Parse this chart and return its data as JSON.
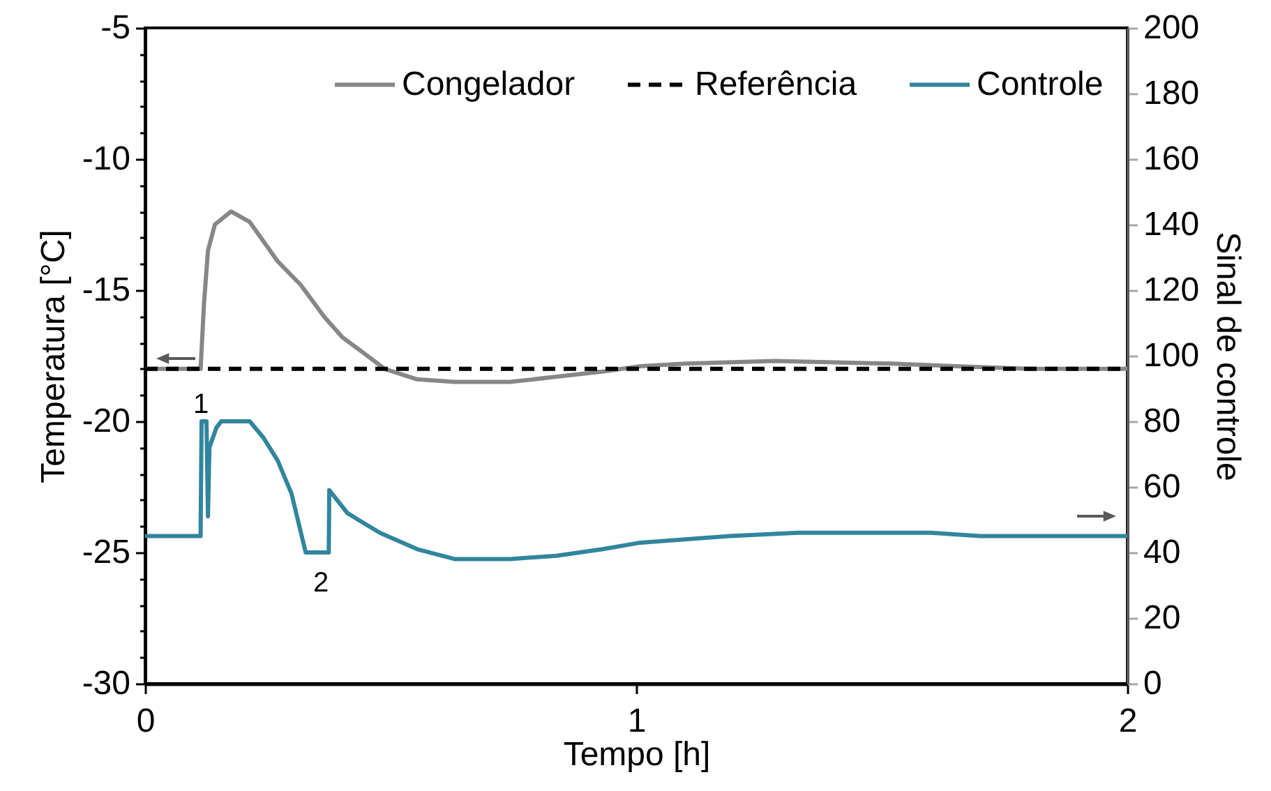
{
  "chart_data": {
    "type": "line",
    "xlabel": "Tempo [h]",
    "ylabel": "Temperatura [°C]",
    "y2label": "Sinal de controle",
    "legend": "top right",
    "xlim": [
      0,
      2
    ],
    "xticks": [
      0,
      1,
      2
    ],
    "ylim": [
      -30,
      -5
    ],
    "yticks": [
      -30,
      {
        "value": -29,
        "label": null
      },
      {
        "value": -28,
        "label": null
      },
      {
        "value": -27,
        "label": null
      },
      {
        "value": -26,
        "label": null
      },
      -25,
      {
        "value": -24,
        "label": null
      },
      {
        "value": -23,
        "label": null
      },
      {
        "value": -22,
        "label": null
      },
      {
        "value": -21,
        "label": null
      },
      -20,
      {
        "value": -19,
        "label": null
      },
      {
        "value": -18,
        "label": null
      },
      {
        "value": -17,
        "label": null
      },
      {
        "value": -16,
        "label": null
      },
      -15,
      {
        "value": -14,
        "label": null
      },
      {
        "value": -13,
        "label": null
      },
      {
        "value": -12,
        "label": null
      },
      {
        "value": -11,
        "label": null
      },
      -10,
      {
        "value": -9,
        "label": null
      },
      {
        "value": -8,
        "label": null
      },
      {
        "value": -7,
        "label": null
      },
      {
        "value": -6,
        "label": null
      },
      -5
    ],
    "y2lim": [
      0,
      200
    ],
    "y2ticks": [
      0,
      20,
      40,
      60,
      80,
      100,
      120,
      140,
      160,
      180,
      200
    ],
    "series": [
      {
        "name": "Congelador",
        "color": "#878787",
        "x": [
          0,
          0.05,
          0.113,
          0.12,
          0.128,
          0.142,
          0.175,
          0.213,
          0.27,
          0.317,
          0.364,
          0.402,
          0.431,
          0.488,
          0.554,
          0.63,
          0.743,
          0.838,
          0.933,
          1.009,
          1.1,
          1.283,
          1.52,
          1.65,
          1.8,
          2.0
        ],
        "values": [
          -18.0,
          -18.0,
          -18.0,
          -15.5,
          -13.5,
          -12.5,
          -12.0,
          -12.4,
          -13.9,
          -14.8,
          -16.0,
          -16.8,
          -17.2,
          -18.0,
          -18.4,
          -18.5,
          -18.5,
          -18.3,
          -18.1,
          -17.9,
          -17.8,
          -17.7,
          -17.8,
          -17.9,
          -18.0,
          -18.0
        ]
      },
      {
        "name": "Referência",
        "color": "#000000",
        "line_style": "dashed",
        "x": [
          0,
          2
        ],
        "values": [
          -18,
          -18
        ]
      },
      {
        "name": "Controle",
        "color": "#31859c",
        "axis": "y2",
        "x": [
          0,
          0.05,
          0.113,
          0.115,
          0.125,
          0.128,
          0.131,
          0.145,
          0.155,
          0.213,
          0.241,
          0.27,
          0.298,
          0.327,
          0.374,
          0.375,
          0.412,
          0.478,
          0.554,
          0.63,
          0.743,
          0.838,
          0.932,
          1.009,
          1.1,
          1.19,
          1.33,
          1.47,
          1.6,
          1.7,
          1.85,
          2.0
        ],
        "values": [
          45,
          45,
          45,
          80,
          80,
          51,
          72,
          78,
          80,
          80,
          75,
          68,
          58,
          40,
          40,
          59,
          52,
          46,
          41,
          38,
          38,
          39,
          41,
          43,
          44,
          45,
          46,
          46,
          46,
          45,
          45,
          45
        ]
      }
    ],
    "annotations": [
      "1",
      "2"
    ]
  }
}
